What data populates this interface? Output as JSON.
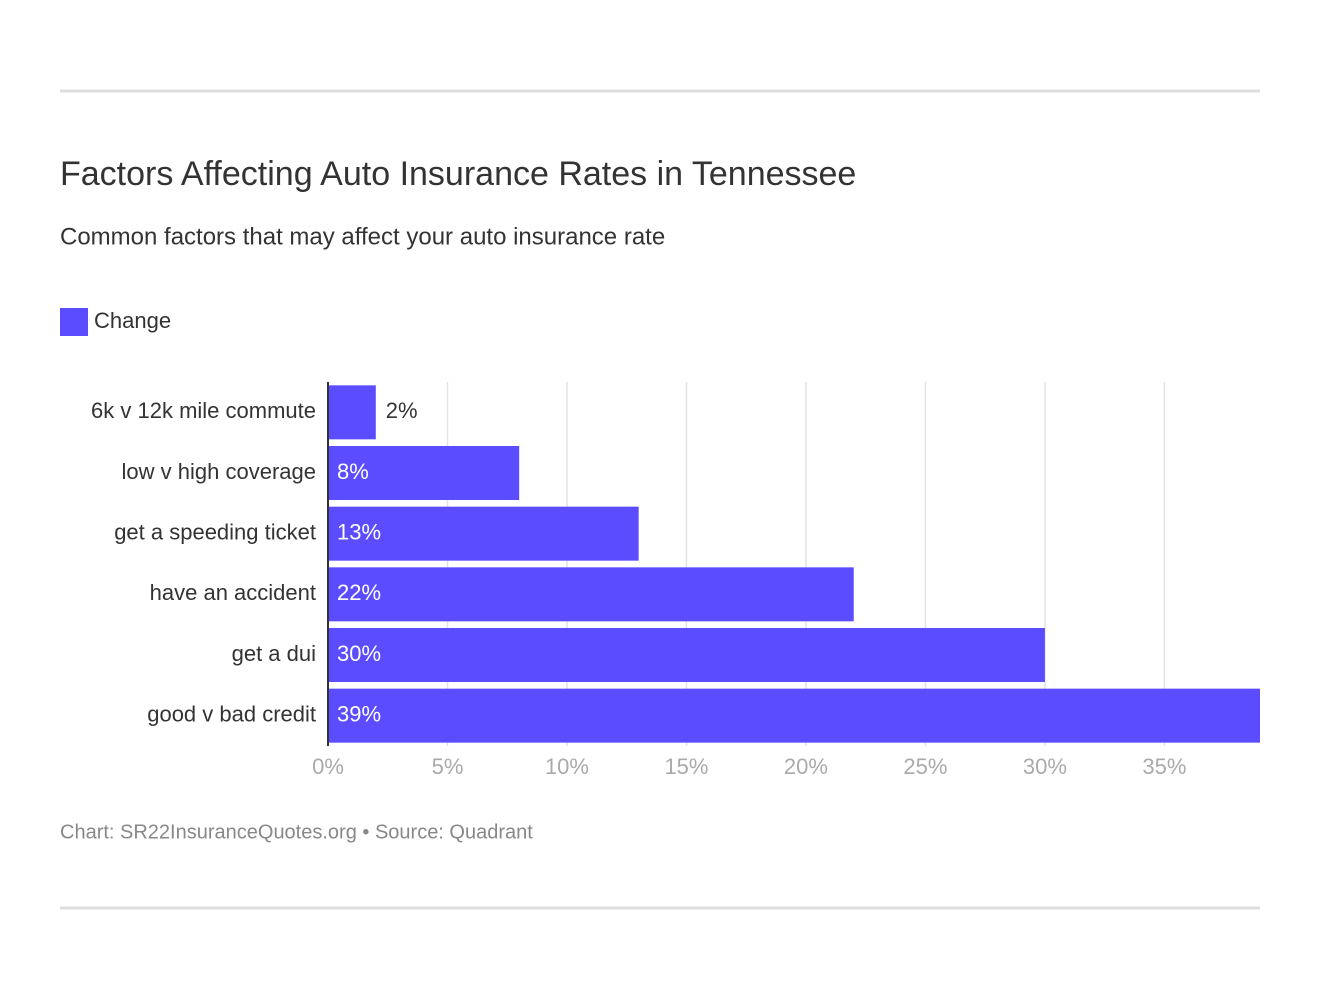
{
  "chart_data": {
    "type": "bar",
    "orientation": "horizontal",
    "title": "Factors Affecting Auto Insurance Rates in Tennessee",
    "subtitle": "Common factors that may affect your auto insurance rate",
    "categories": [
      "6k v 12k mile commute",
      "low v high coverage",
      "get a speeding ticket",
      "have an accident",
      "get a dui",
      "good v bad credit"
    ],
    "series": [
      {
        "name": "Change",
        "color": "#5b4cff",
        "values": [
          2,
          8,
          13,
          22,
          30,
          39
        ],
        "value_labels": [
          "2%",
          "8%",
          "13%",
          "22%",
          "30%",
          "39%"
        ]
      }
    ],
    "xlim": [
      0,
      39
    ],
    "xticks": [
      {
        "value": 0,
        "label": "0%"
      },
      {
        "value": 5,
        "label": "5%"
      },
      {
        "value": 10,
        "label": "10%"
      },
      {
        "value": 15,
        "label": "15%"
      },
      {
        "value": 20,
        "label": "20%"
      },
      {
        "value": 25,
        "label": "25%"
      },
      {
        "value": 30,
        "label": "30%"
      },
      {
        "value": 35,
        "label": "35%"
      }
    ],
    "grid": true,
    "legend": "top-left",
    "source": "Chart: SR22InsuranceQuotes.org • Source: Quadrant"
  }
}
